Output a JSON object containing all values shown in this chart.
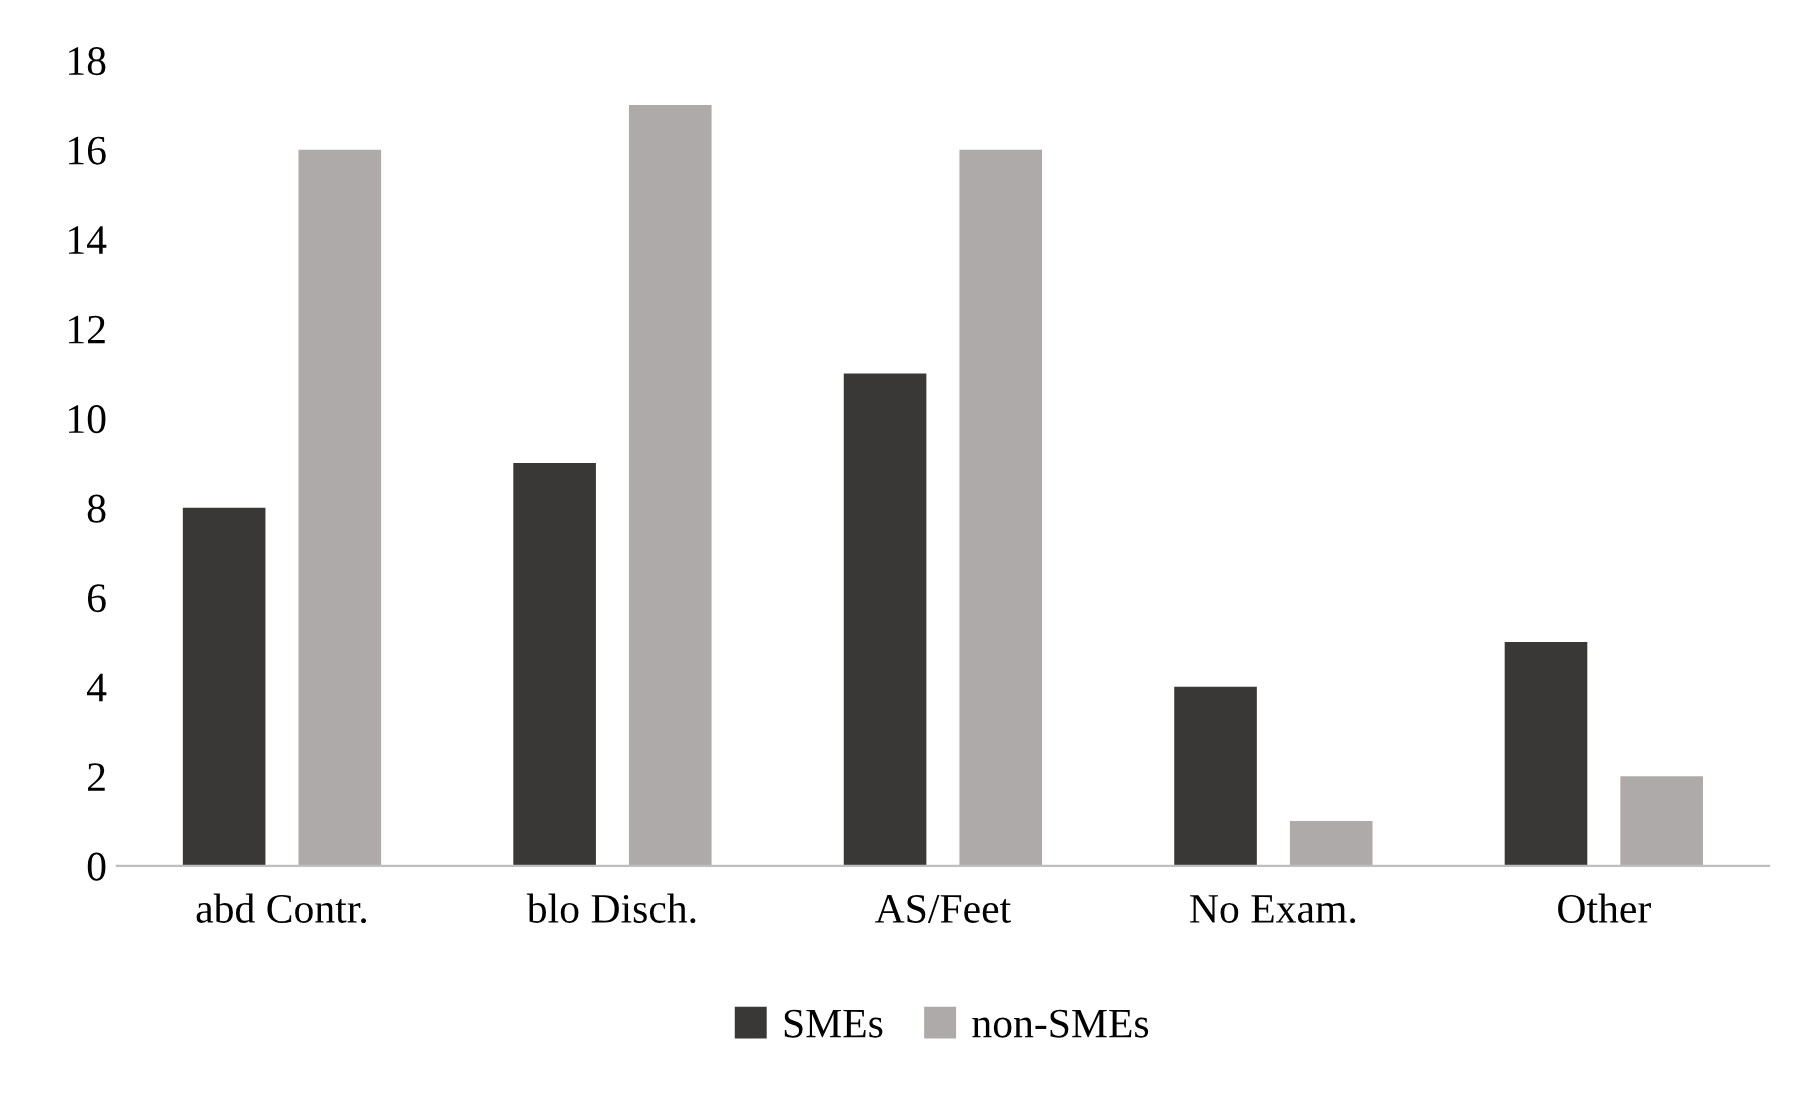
{
  "chart_data": {
    "type": "bar",
    "categories": [
      "abd Contr.",
      "blo Disch.",
      "AS/Feet",
      "No Exam.",
      "Other"
    ],
    "series": [
      {
        "name": "SMEs",
        "color": "#3a3836",
        "values": [
          8,
          9,
          11,
          4,
          5
        ]
      },
      {
        "name": "non-SMEs",
        "color": "#aeaaaa",
        "values": [
          16,
          17,
          16,
          1,
          2
        ]
      }
    ],
    "ylim": [
      0,
      18
    ],
    "yticks": [
      0,
      2,
      4,
      6,
      8,
      10,
      12,
      14,
      16,
      18
    ],
    "legend": "bottom"
  }
}
